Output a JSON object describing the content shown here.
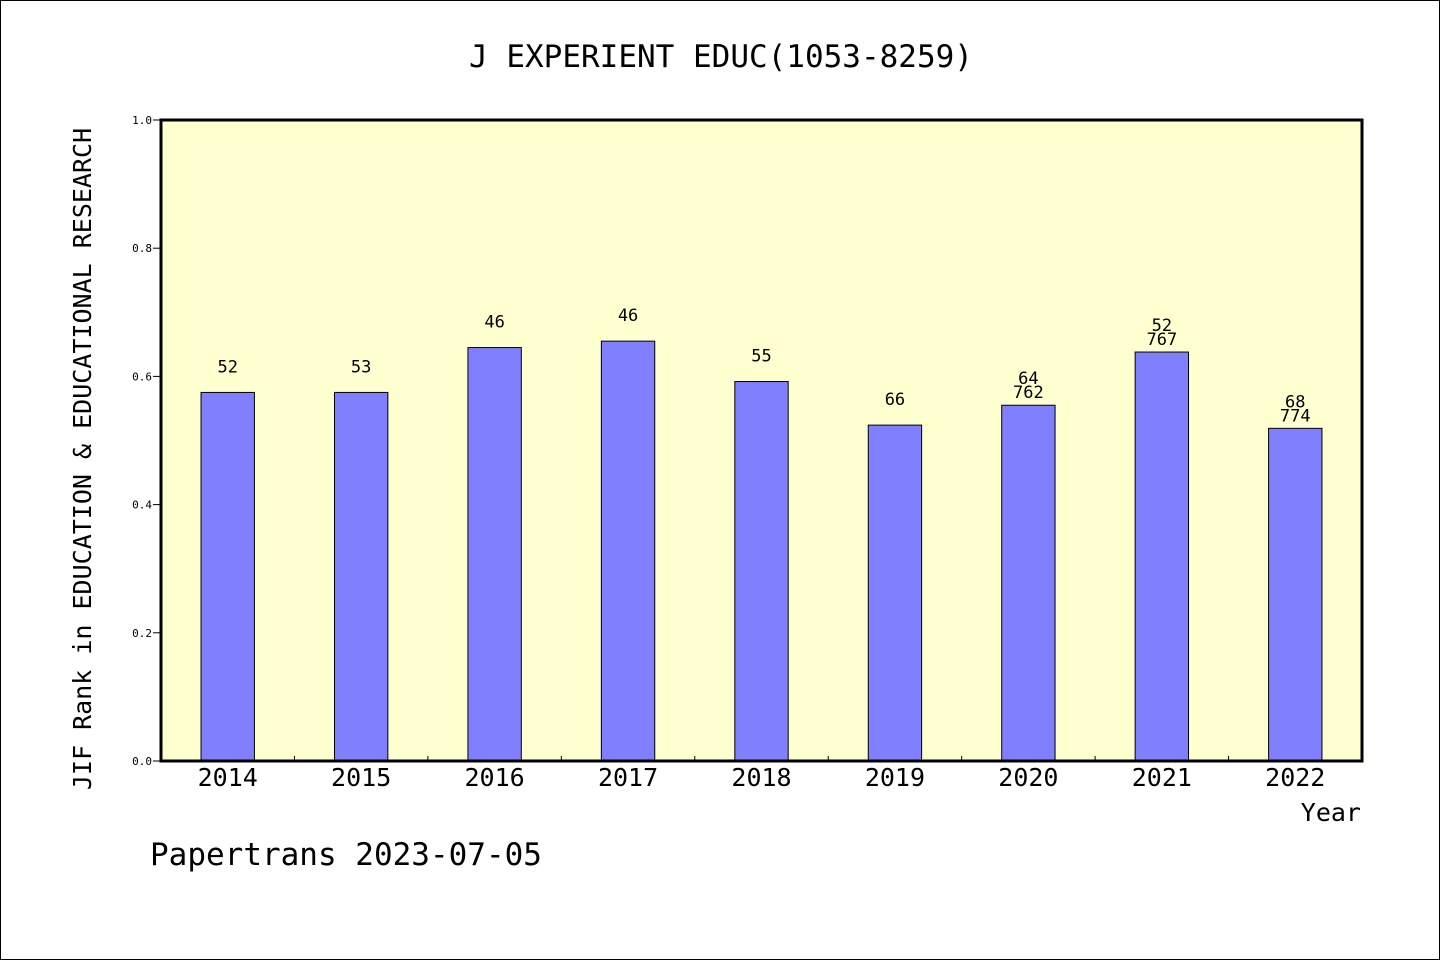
{
  "chart_data": {
    "type": "bar",
    "title": "J EXPERIENT EDUC(1053-8259)",
    "xlabel": "Year",
    "ylabel": "JIF Rank in EDUCATION & EDUCATIONAL RESEARCH",
    "ylim": [
      0.0,
      1.0
    ],
    "yticks": [
      "0.0",
      "0.2",
      "0.4",
      "0.6",
      "0.8",
      "1.0"
    ],
    "categories": [
      "2014",
      "2015",
      "2016",
      "2017",
      "2018",
      "2019",
      "2020",
      "2021",
      "2022"
    ],
    "values": [
      0.575,
      0.575,
      0.645,
      0.655,
      0.592,
      0.524,
      0.555,
      0.638,
      0.519
    ],
    "labels": [
      [
        "52"
      ],
      [
        "53"
      ],
      [
        "46"
      ],
      [
        "46"
      ],
      [
        "55"
      ],
      [
        "66"
      ],
      [
        "64",
        "762"
      ],
      [
        "52",
        "767"
      ],
      [
        "68",
        "774"
      ]
    ],
    "grid": false,
    "colors": {
      "plot_background": "#ffffd0",
      "bar_fill": "#8080ff",
      "bar_stroke": "#000000"
    }
  },
  "footer": "Papertrans 2023-07-05"
}
